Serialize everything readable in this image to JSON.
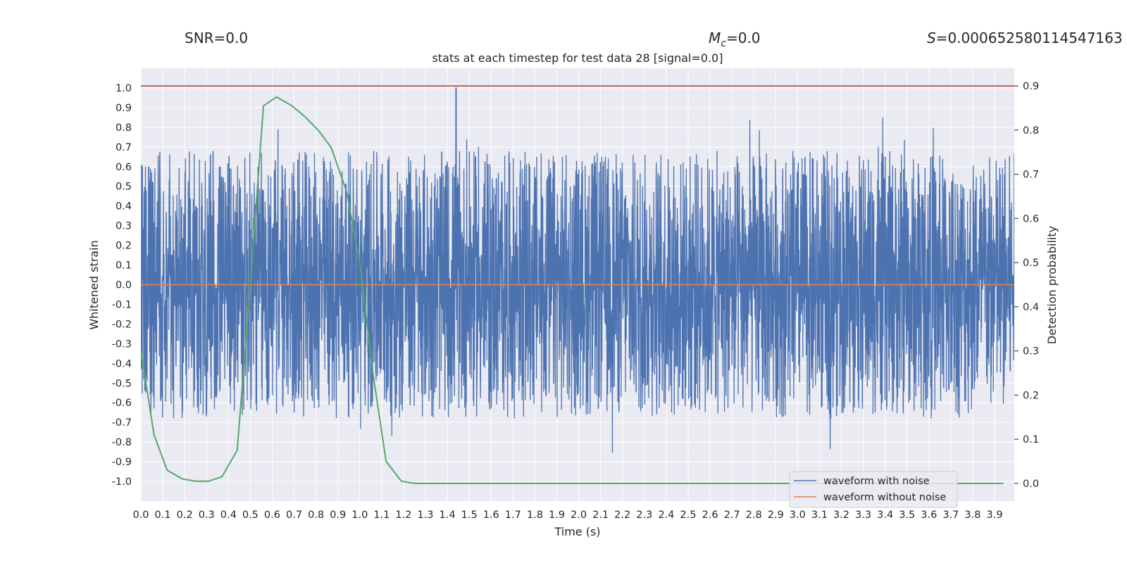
{
  "header": {
    "snr": "SNR=0.0",
    "mc_symbol": "M",
    "mc_sub": "c",
    "mc_value": "=0.0",
    "s_symbol": "S",
    "s_value": "=0.000652580114547163"
  },
  "colors": {
    "background": "#eaeaf2",
    "grid": "#ffffff",
    "noisy": "#4c72b0",
    "clean": "#dd8452",
    "prob": "#55a868",
    "threshold": "#c44e52"
  },
  "chart_data": {
    "type": "line",
    "title": "stats at each timestep for test data 28 [signal=0.0]",
    "xlabel": "Time (s)",
    "ylabel": "Whitened strain",
    "y2label": "Detection probability",
    "xlim": [
      0.0,
      3.99
    ],
    "ylim": [
      -1.1,
      1.1
    ],
    "y2lim": [
      -0.04,
      0.94
    ],
    "xticks": [
      "0.0",
      "0.1",
      "0.2",
      "0.3",
      "0.4",
      "0.5",
      "0.6",
      "0.7",
      "0.8",
      "0.9",
      "1.0",
      "1.1",
      "1.2",
      "1.3",
      "1.4",
      "1.5",
      "1.6",
      "1.7",
      "1.8",
      "1.9",
      "2.0",
      "2.1",
      "2.2",
      "2.3",
      "2.4",
      "2.5",
      "2.6",
      "2.7",
      "2.8",
      "2.9",
      "3.0",
      "3.1",
      "3.2",
      "3.3",
      "3.4",
      "3.5",
      "3.6",
      "3.7",
      "3.8",
      "3.9"
    ],
    "yticks": [
      "1.0",
      "0.9",
      "0.8",
      "0.7",
      "0.6",
      "0.5",
      "0.4",
      "0.3",
      "0.2",
      "0.1",
      "0.0",
      "-0.1",
      "-0.2",
      "-0.3",
      "-0.4",
      "-0.5",
      "-0.6",
      "-0.7",
      "-0.8",
      "-0.9",
      "-1.0"
    ],
    "y2ticks": [
      "0.9",
      "0.8",
      "0.7",
      "0.6",
      "0.5",
      "0.4",
      "0.3",
      "0.2",
      "0.1",
      "0.0"
    ],
    "threshold": 0.9,
    "series": [
      {
        "name": "waveform with noise",
        "kind": "noise",
        "amplitude": 1.0,
        "peak_at": 1.44,
        "samples": 4000
      },
      {
        "name": "waveform without noise",
        "kind": "constant",
        "value": 0.0
      },
      {
        "name": "detection probability",
        "axis": "right",
        "x": [
          0.0,
          0.06,
          0.12,
          0.19,
          0.25,
          0.31,
          0.37,
          0.44,
          0.5,
          0.56,
          0.62,
          0.69,
          0.75,
          0.81,
          0.87,
          0.94,
          1.0,
          1.06,
          1.12,
          1.19,
          1.25,
          1.31,
          1.37,
          1.44,
          1.5,
          1.56,
          1.62,
          1.69,
          1.75,
          1.81,
          1.87,
          1.94,
          2.0,
          2.06,
          2.12,
          2.19,
          2.25,
          2.31,
          2.37,
          2.44,
          2.5,
          2.56,
          2.62,
          2.69,
          2.75,
          2.81,
          2.87,
          2.94,
          3.0,
          3.06,
          3.12,
          3.19,
          3.25,
          3.31,
          3.37,
          3.44,
          3.5,
          3.56,
          3.62,
          3.69,
          3.75,
          3.81,
          3.87,
          3.94
        ],
        "y": [
          0.3,
          0.11,
          0.03,
          0.01,
          0.005,
          0.005,
          0.015,
          0.075,
          0.45,
          0.855,
          0.875,
          0.855,
          0.83,
          0.8,
          0.76,
          0.66,
          0.5,
          0.25,
          0.05,
          0.005,
          0.0,
          0.0,
          0.0,
          0.0,
          0.0,
          0.0,
          0.0,
          0.0,
          0.0,
          0.0,
          0.0,
          0.0,
          0.0,
          0.0,
          0.0,
          0.0,
          0.0,
          0.0,
          0.0,
          0.0,
          0.0,
          0.0,
          0.0,
          0.0,
          0.0,
          0.0,
          0.0,
          0.0,
          0.0,
          0.0,
          0.0,
          0.0,
          0.0,
          0.0,
          0.0,
          0.0,
          0.0,
          0.0,
          0.0,
          0.0,
          0.0,
          0.0,
          0.0,
          0.0
        ]
      }
    ],
    "legend": {
      "position": "lower-right",
      "entries": [
        "waveform with noise",
        "waveform without noise"
      ]
    }
  }
}
